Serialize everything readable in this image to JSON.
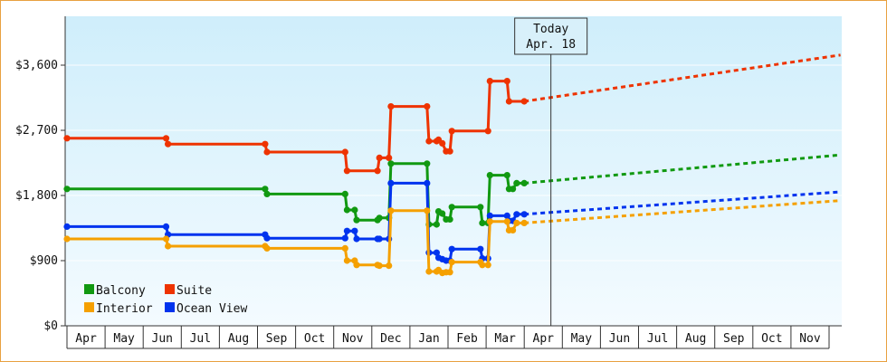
{
  "chart_data": {
    "type": "line",
    "today_label": "Today",
    "today_date": "Apr. 18",
    "today_x": 12.7,
    "y_ticks": [
      "$0",
      "$900",
      "$1,800",
      "$2,700",
      "$3,600"
    ],
    "y_tick_values": [
      0,
      900,
      1800,
      2700,
      3600
    ],
    "ylim": [
      0,
      3600
    ],
    "months": [
      "Apr",
      "May",
      "Jun",
      "Jul",
      "Aug",
      "Sep",
      "Oct",
      "Nov",
      "Dec",
      "Jan",
      "Feb",
      "Mar",
      "Apr",
      "May",
      "Jun",
      "Jul",
      "Aug",
      "Sep",
      "Oct",
      "Nov"
    ],
    "grid": true,
    "legend_position": "bottom-left",
    "series": [
      {
        "name": "Suite",
        "color": "#ee3300",
        "points": [
          [
            0.0,
            2590
          ],
          [
            2.6,
            2590
          ],
          [
            2.65,
            2510
          ],
          [
            5.2,
            2510
          ],
          [
            5.25,
            2400
          ],
          [
            7.3,
            2400
          ],
          [
            7.35,
            2140
          ],
          [
            8.15,
            2140
          ],
          [
            8.2,
            2320
          ],
          [
            8.45,
            2320
          ],
          [
            8.5,
            3030
          ],
          [
            9.45,
            3030
          ],
          [
            9.5,
            2550
          ],
          [
            9.7,
            2550
          ],
          [
            9.75,
            2570
          ],
          [
            9.85,
            2520
          ],
          [
            9.95,
            2410
          ],
          [
            10.05,
            2410
          ],
          [
            10.1,
            2690
          ],
          [
            11.05,
            2690
          ],
          [
            11.1,
            3380
          ],
          [
            11.55,
            3380
          ],
          [
            11.6,
            3100
          ],
          [
            12.0,
            3100
          ]
        ],
        "projection": [
          [
            12.0,
            3100
          ],
          [
            20.3,
            3740
          ]
        ]
      },
      {
        "name": "Balcony",
        "color": "#119911",
        "points": [
          [
            0.0,
            1890
          ],
          [
            5.2,
            1890
          ],
          [
            5.25,
            1820
          ],
          [
            7.3,
            1820
          ],
          [
            7.35,
            1600
          ],
          [
            7.55,
            1600
          ],
          [
            7.6,
            1460
          ],
          [
            8.15,
            1460
          ],
          [
            8.2,
            1490
          ],
          [
            8.45,
            1490
          ],
          [
            8.5,
            2240
          ],
          [
            9.45,
            2240
          ],
          [
            9.5,
            1400
          ],
          [
            9.7,
            1400
          ],
          [
            9.75,
            1580
          ],
          [
            9.85,
            1550
          ],
          [
            9.95,
            1470
          ],
          [
            10.05,
            1470
          ],
          [
            10.1,
            1640
          ],
          [
            10.85,
            1640
          ],
          [
            10.9,
            1420
          ],
          [
            11.05,
            1420
          ],
          [
            11.1,
            2080
          ],
          [
            11.55,
            2080
          ],
          [
            11.6,
            1890
          ],
          [
            11.7,
            1890
          ],
          [
            11.8,
            1970
          ],
          [
            12.0,
            1970
          ]
        ],
        "projection": [
          [
            12.0,
            1970
          ],
          [
            20.3,
            2360
          ]
        ]
      },
      {
        "name": "Ocean View",
        "color": "#0033ee",
        "points": [
          [
            0.0,
            1370
          ],
          [
            2.6,
            1370
          ],
          [
            2.65,
            1260
          ],
          [
            5.2,
            1260
          ],
          [
            5.25,
            1210
          ],
          [
            7.3,
            1210
          ],
          [
            7.35,
            1310
          ],
          [
            7.55,
            1310
          ],
          [
            7.6,
            1200
          ],
          [
            8.15,
            1200
          ],
          [
            8.2,
            1200
          ],
          [
            8.45,
            1200
          ],
          [
            8.5,
            1970
          ],
          [
            9.45,
            1970
          ],
          [
            9.5,
            1010
          ],
          [
            9.7,
            1010
          ],
          [
            9.75,
            940
          ],
          [
            9.85,
            920
          ],
          [
            9.95,
            900
          ],
          [
            10.05,
            900
          ],
          [
            10.1,
            1060
          ],
          [
            10.85,
            1060
          ],
          [
            10.9,
            930
          ],
          [
            11.05,
            930
          ],
          [
            11.1,
            1520
          ],
          [
            11.55,
            1520
          ],
          [
            11.6,
            1450
          ],
          [
            11.7,
            1450
          ],
          [
            11.8,
            1540
          ],
          [
            12.0,
            1540
          ]
        ],
        "projection": [
          [
            12.0,
            1540
          ],
          [
            20.3,
            1850
          ]
        ]
      },
      {
        "name": "Interior",
        "color": "#f5a000",
        "points": [
          [
            0.0,
            1200
          ],
          [
            2.6,
            1200
          ],
          [
            2.65,
            1100
          ],
          [
            5.2,
            1100
          ],
          [
            5.25,
            1070
          ],
          [
            7.3,
            1070
          ],
          [
            7.35,
            900
          ],
          [
            7.55,
            900
          ],
          [
            7.6,
            840
          ],
          [
            8.15,
            840
          ],
          [
            8.2,
            830
          ],
          [
            8.45,
            830
          ],
          [
            8.5,
            1590
          ],
          [
            9.45,
            1590
          ],
          [
            9.5,
            750
          ],
          [
            9.7,
            750
          ],
          [
            9.75,
            770
          ],
          [
            9.85,
            730
          ],
          [
            9.95,
            740
          ],
          [
            10.05,
            740
          ],
          [
            10.1,
            880
          ],
          [
            10.85,
            880
          ],
          [
            10.9,
            840
          ],
          [
            11.05,
            840
          ],
          [
            11.1,
            1440
          ],
          [
            11.55,
            1440
          ],
          [
            11.6,
            1320
          ],
          [
            11.7,
            1320
          ],
          [
            11.8,
            1420
          ],
          [
            12.0,
            1420
          ]
        ],
        "projection": [
          [
            12.0,
            1420
          ],
          [
            20.3,
            1730
          ]
        ]
      }
    ],
    "legend": [
      {
        "name": "Balcony",
        "color": "#119911"
      },
      {
        "name": "Suite",
        "color": "#ee3300"
      },
      {
        "name": "Interior",
        "color": "#f5a000"
      },
      {
        "name": "Ocean View",
        "color": "#0033ee"
      }
    ]
  }
}
